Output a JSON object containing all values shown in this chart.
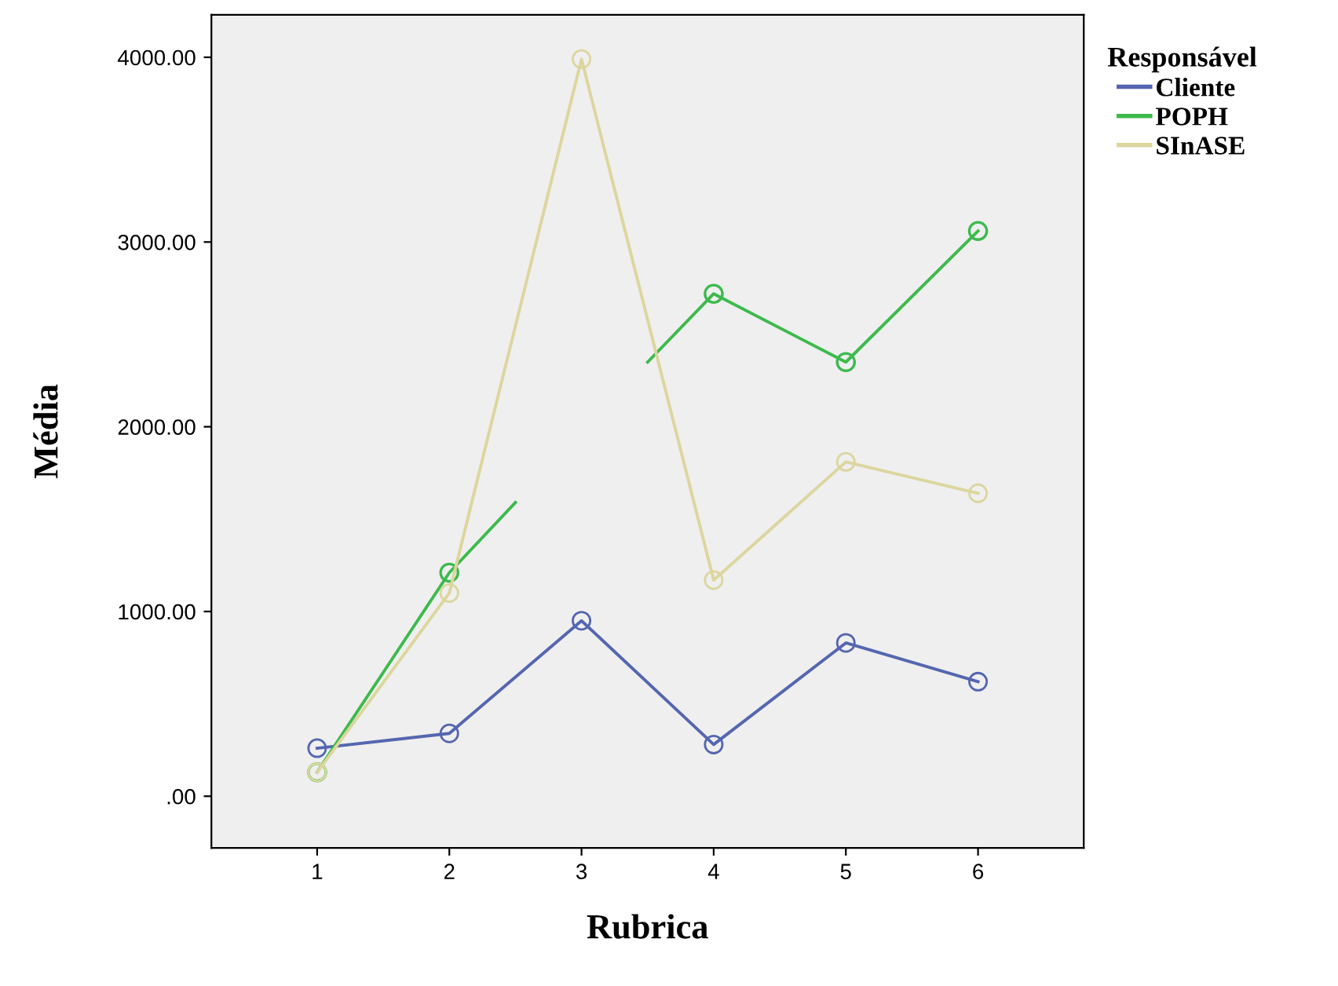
{
  "chart_data": {
    "type": "line",
    "xlabel": "Rubrica",
    "ylabel": "Média",
    "legend_title": "Responsável",
    "legend": "top right",
    "grid": false,
    "xlim": [
      0.2,
      6.8
    ],
    "xticks": [
      1,
      2,
      3,
      4,
      5,
      6
    ],
    "ylim": [
      -280,
      4230
    ],
    "yticks": [
      {
        "value": 0,
        "label": ".00"
      },
      {
        "value": 1000,
        "label": "1000.00"
      },
      {
        "value": 2000,
        "label": "2000.00"
      },
      {
        "value": 3000,
        "label": "3000.00"
      },
      {
        "value": 4000,
        "label": "4000.00"
      }
    ],
    "series": [
      {
        "name": "Cliente",
        "color": "#5566b0",
        "marker": "circle",
        "x": [
          1,
          2,
          3,
          4,
          5,
          6
        ],
        "values": [
          260,
          340,
          950,
          280,
          830,
          620
        ]
      },
      {
        "name": "POPH",
        "color": "#3dba4c",
        "marker": "none",
        "x": [
          1,
          2,
          2.5,
          3,
          3.5,
          4,
          5,
          6
        ],
        "values": [
          130,
          1210,
          1590,
          null,
          2350,
          2720,
          2350,
          3060
        ]
      },
      {
        "type": "scatter",
        "color": "#3dba4c",
        "marker": "circle",
        "x": [
          1,
          2,
          4,
          5,
          6
        ],
        "values": [
          130,
          1210,
          2720,
          2350,
          3060
        ]
      },
      {
        "name": "SInASE",
        "color": "#dcd69e",
        "marker": "circle",
        "x": [
          1,
          2,
          3,
          4,
          5,
          6
        ],
        "values": [
          130,
          1100,
          3990,
          1170,
          1810,
          1640
        ]
      }
    ]
  }
}
